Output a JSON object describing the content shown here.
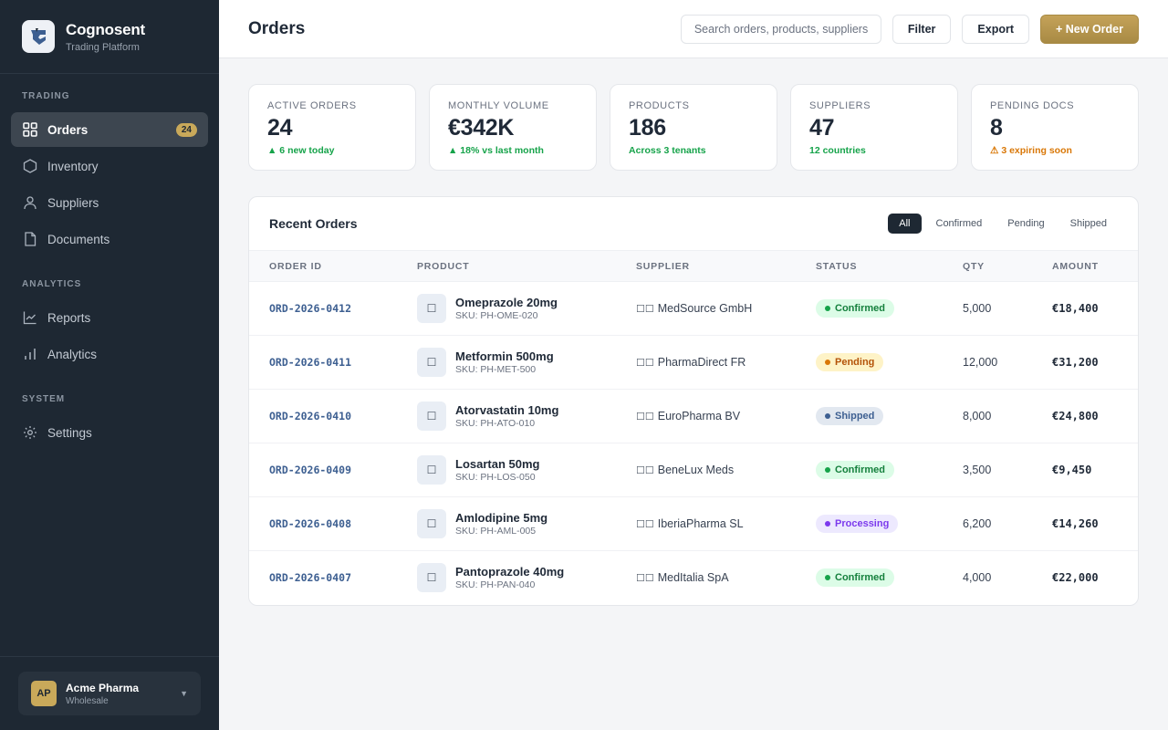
{
  "sidebar": {
    "brand": {
      "name": "Cognosent",
      "subtitle": "Trading Platform"
    },
    "sections": [
      {
        "heading": "TRADING",
        "items": [
          {
            "label": "Orders",
            "icon": "grid-icon",
            "badge": "24",
            "active": true
          },
          {
            "label": "Inventory",
            "icon": "box-icon"
          },
          {
            "label": "Suppliers",
            "icon": "user-icon"
          },
          {
            "label": "Documents",
            "icon": "file-icon"
          }
        ]
      },
      {
        "heading": "ANALYTICS",
        "items": [
          {
            "label": "Reports",
            "icon": "line-chart-icon"
          },
          {
            "label": "Analytics",
            "icon": "bar-chart-icon"
          }
        ]
      },
      {
        "heading": "SYSTEM",
        "items": [
          {
            "label": "Settings",
            "icon": "gear-icon"
          }
        ]
      }
    ],
    "account": {
      "initials": "AP",
      "name": "Acme Pharma",
      "type": "Wholesale",
      "caret": "▼"
    }
  },
  "header": {
    "title": "Orders",
    "search_placeholder": "Search orders, products, suppliers...",
    "filter_label": "Filter",
    "export_label": "Export",
    "new_order_label": "+ New Order"
  },
  "stats": [
    {
      "label": "Active Orders",
      "value": "24",
      "delta": "▲ 6 new today",
      "tone": "green"
    },
    {
      "label": "Monthly Volume",
      "value": "€342K",
      "delta": "▲ 18% vs last month",
      "tone": "green"
    },
    {
      "label": "Products",
      "value": "186",
      "delta": "Across 3 tenants",
      "tone": "green"
    },
    {
      "label": "Suppliers",
      "value": "47",
      "delta": "12 countries",
      "tone": "green"
    },
    {
      "label": "Pending Docs",
      "value": "8",
      "delta": "⚠ 3 expiring soon",
      "tone": "orange"
    }
  ],
  "orders": {
    "title": "Recent Orders",
    "tabs": [
      {
        "label": "All",
        "active": true
      },
      {
        "label": "Confirmed"
      },
      {
        "label": "Pending"
      },
      {
        "label": "Shipped"
      }
    ],
    "columns": [
      "Order ID",
      "Product",
      "Supplier",
      "Status",
      "Qty",
      "Amount"
    ],
    "rows": [
      {
        "id": "ORD-2026-0412",
        "product": "Omeprazole 20mg",
        "sku": "SKU: PH-OME-020",
        "flag": "☐☐",
        "supplier": "MedSource GmbH",
        "status": "Confirmed",
        "qty": "5,000",
        "amount": "€18,400"
      },
      {
        "id": "ORD-2026-0411",
        "product": "Metformin 500mg",
        "sku": "SKU: PH-MET-500",
        "flag": "☐☐",
        "supplier": "PharmaDirect FR",
        "status": "Pending",
        "qty": "12,000",
        "amount": "€31,200"
      },
      {
        "id": "ORD-2026-0410",
        "product": "Atorvastatin 10mg",
        "sku": "SKU: PH-ATO-010",
        "flag": "☐☐",
        "supplier": "EuroPharma BV",
        "status": "Shipped",
        "qty": "8,000",
        "amount": "€24,800"
      },
      {
        "id": "ORD-2026-0409",
        "product": "Losartan 50mg",
        "sku": "SKU: PH-LOS-050",
        "flag": "☐☐",
        "supplier": "BeneLux Meds",
        "status": "Confirmed",
        "qty": "3,500",
        "amount": "€9,450"
      },
      {
        "id": "ORD-2026-0408",
        "product": "Amlodipine 5mg",
        "sku": "SKU: PH-AML-005",
        "flag": "☐☐",
        "supplier": "IberiaPharma SL",
        "status": "Processing",
        "qty": "6,200",
        "amount": "€14,260"
      },
      {
        "id": "ORD-2026-0407",
        "product": "Pantoprazole 40mg",
        "sku": "SKU: PH-PAN-040",
        "flag": "☐☐",
        "supplier": "MedItalia SpA",
        "status": "Confirmed",
        "qty": "4,000",
        "amount": "€22,000"
      }
    ]
  },
  "colors": {
    "sidebar_bg": "#1e2833",
    "accent_gold": "#c9a95a",
    "green": "#16a34a",
    "orange": "#d97706",
    "status": {
      "Confirmed": {
        "bg": "#dcfce7",
        "fg": "#15803d",
        "dot": "#16a34a"
      },
      "Pending": {
        "bg": "#fef3c7",
        "fg": "#b45309",
        "dot": "#d97706"
      },
      "Shipped": {
        "bg": "#e2e8f0",
        "fg": "#3d5f91",
        "dot": "#3d5f91"
      },
      "Processing": {
        "bg": "#ede9fe",
        "fg": "#7c3aed",
        "dot": "#7c3aed"
      }
    }
  }
}
